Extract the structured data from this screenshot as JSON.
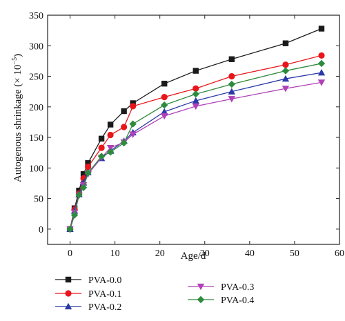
{
  "chart_data": {
    "type": "line",
    "title": "",
    "xlabel": "Age/d",
    "ylabel_main": "Autogenous shrinkage (× 10",
    "ylabel_exp": "−5",
    "ylabel_close": ")",
    "xlim": [
      -5,
      60
    ],
    "ylim": [
      -25,
      350
    ],
    "xticks": [
      0,
      10,
      20,
      30,
      40,
      50,
      60
    ],
    "yticks": [
      0,
      50,
      100,
      150,
      200,
      250,
      300,
      350
    ],
    "grid": false,
    "legend_position": "bottom",
    "x": [
      0,
      1,
      2,
      3,
      4,
      7,
      9,
      12,
      14,
      21,
      28,
      36,
      48,
      56
    ],
    "series": [
      {
        "name": "PVA-0.0",
        "color": "#1a1a1a",
        "marker": "square",
        "values": [
          0,
          34,
          63,
          90,
          108,
          148,
          171,
          193,
          206,
          238,
          259,
          278,
          304,
          328
        ]
      },
      {
        "name": "PVA-0.1",
        "color": "#e8161b",
        "marker": "circle",
        "values": [
          0,
          32,
          58,
          83,
          102,
          133,
          154,
          167,
          201,
          216,
          230,
          250,
          269,
          284
        ]
      },
      {
        "name": "PVA-0.2",
        "color": "#2b39a8",
        "marker": "triangle-up",
        "values": [
          0,
          30,
          57,
          76,
          93,
          116,
          128,
          144,
          158,
          192,
          210,
          225,
          246,
          256
        ]
      },
      {
        "name": "PVA-0.3",
        "color": "#b040b8",
        "marker": "triangle-down",
        "values": [
          0,
          27,
          55,
          72,
          90,
          117,
          133,
          142,
          155,
          185,
          201,
          213,
          230,
          240
        ]
      },
      {
        "name": "PVA-0.4",
        "color": "#2e8b3e",
        "marker": "diamond",
        "values": [
          0,
          23,
          56,
          68,
          92,
          119,
          126,
          141,
          172,
          203,
          221,
          237,
          259,
          271
        ]
      }
    ]
  }
}
